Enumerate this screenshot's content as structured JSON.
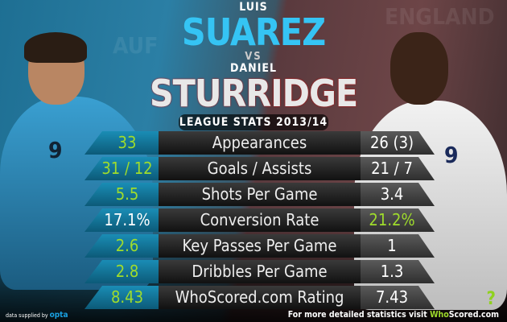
{
  "header": {
    "first_name_1": "LUIS",
    "last_name_1": "SUAREZ",
    "versus": "VS",
    "first_name_2": "DANIEL",
    "last_name_2": "STURRIDGE",
    "subtitle": "LEAGUE STATS 2013/14"
  },
  "background": {
    "left_text": "AUF",
    "right_text": "ENGLAND",
    "left_shirt_number": "9",
    "right_shirt_number": "9"
  },
  "colors": {
    "suarez": "#35c4f4",
    "winner_value": "#9fdc2c",
    "left_cell": "#1a8db5",
    "accent_whoscored": "#9fdc2c"
  },
  "stats": [
    {
      "label": "Appearances",
      "suarez": "33",
      "sturridge": "26 (3)",
      "winner": "suarez"
    },
    {
      "label": "Goals / Assists",
      "suarez": "31 / 12",
      "sturridge": "21 / 7",
      "winner": "suarez"
    },
    {
      "label": "Shots Per Game",
      "suarez": "5.5",
      "sturridge": "3.4",
      "winner": "suarez"
    },
    {
      "label": "Conversion Rate",
      "suarez": "17.1%",
      "sturridge": "21.2%",
      "winner": "sturridge"
    },
    {
      "label": "Key Passes Per Game",
      "suarez": "2.6",
      "sturridge": "1",
      "winner": "suarez"
    },
    {
      "label": "Dribbles Per Game",
      "suarez": "2.8",
      "sturridge": "1.3",
      "winner": "suarez"
    },
    {
      "label": "WhoScored.com Rating",
      "suarez": "8.43",
      "sturridge": "7.43",
      "winner": "suarez"
    }
  ],
  "footer": {
    "supplied_by": "data supplied by",
    "opta": "opta",
    "visit_text": "For more detailed statistics visit",
    "brand_who": "Who",
    "brand_scored": "Scored",
    "brand_com": ".com",
    "logo_icon": "question-mark-icon"
  }
}
